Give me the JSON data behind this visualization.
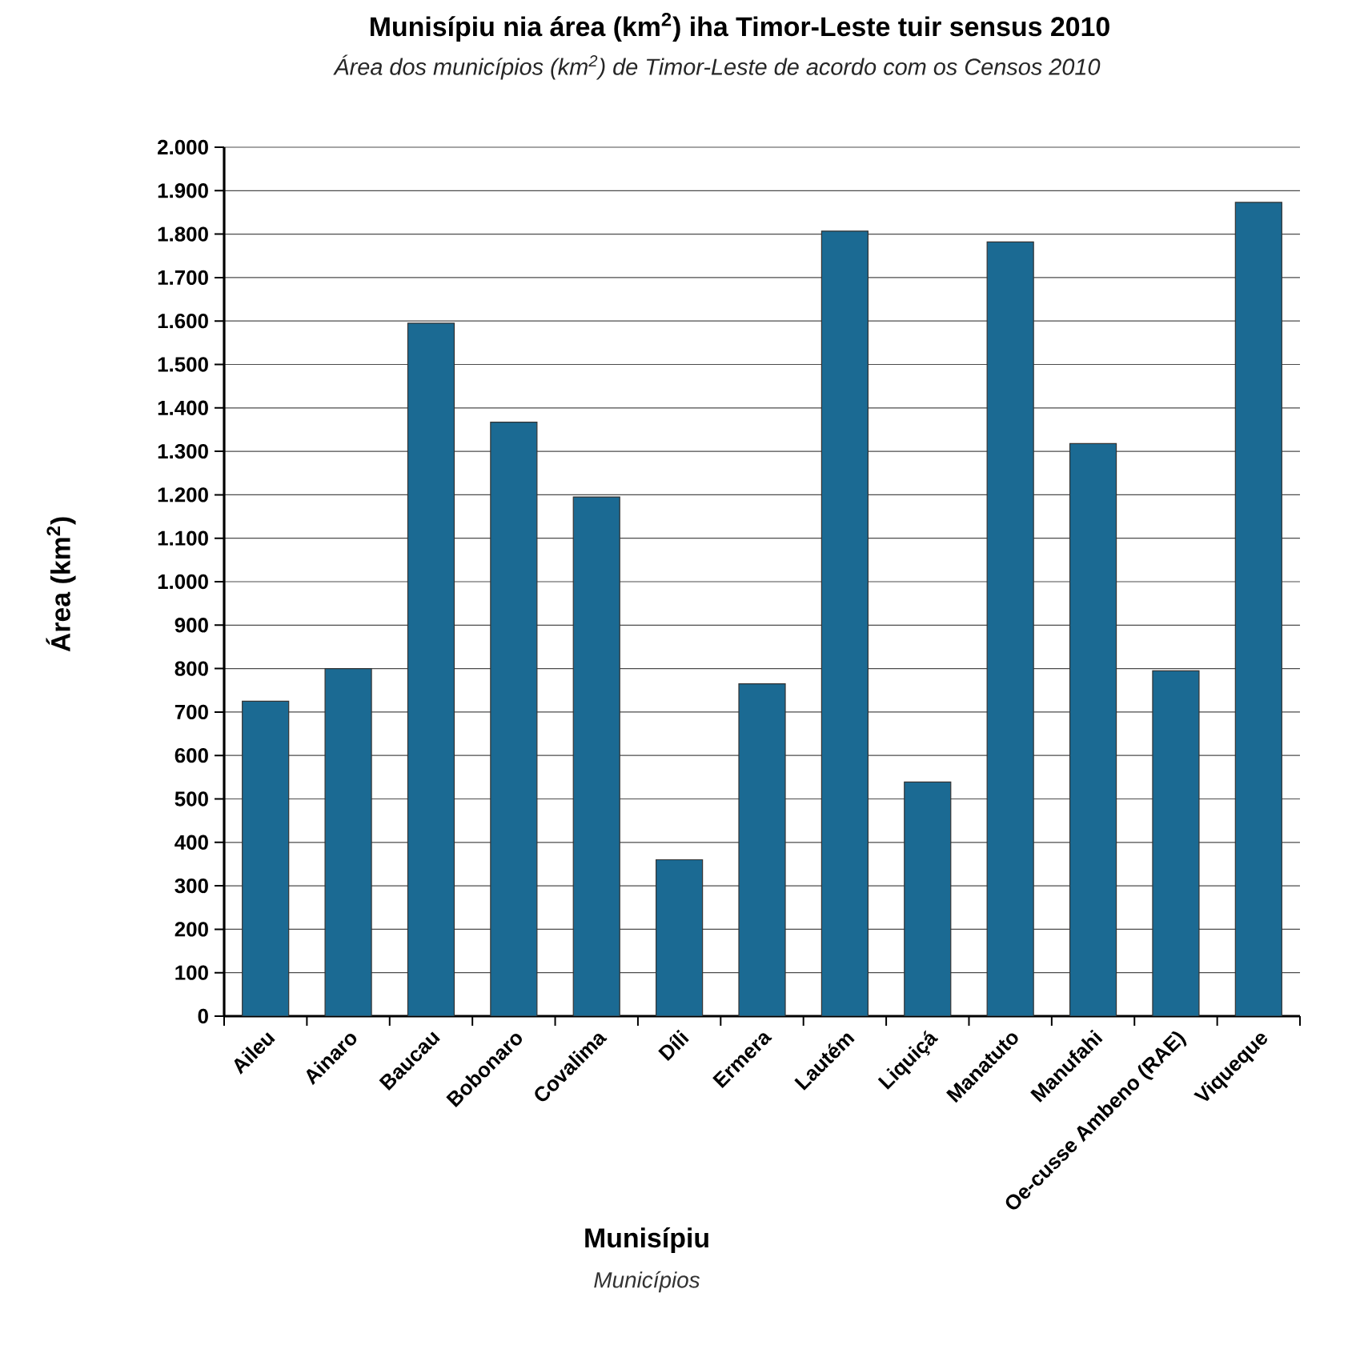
{
  "chart_data": {
    "type": "bar",
    "title": "Munisípiu nia área (km$^{2}$) iha Timor-Leste tuir sensus 2010",
    "subtitle": "Área dos municípios (km$^{2}$) de Timor-Leste de acordo com os Censos 2010",
    "xlabel": "Munisípiu",
    "ylabel": "Área (km$^{2}$)",
    "annotations": [
      "Municípios"
    ],
    "categories": [
      "Aileu",
      "Ainaro",
      "Baucau",
      "Bobonaro",
      "Covalima",
      "Díli",
      "Ermera",
      "Lautém",
      "Liquiçá",
      "Manatuto",
      "Manufahi",
      "Oe-cusse Ambeno (RAE)",
      "Viqueque"
    ],
    "values": [
      725,
      800,
      1595,
      1367,
      1195,
      360,
      765,
      1807,
      539,
      1782,
      1318,
      795,
      1873
    ],
    "color": "#1b6a93",
    "ylim": [
      0,
      2000
    ],
    "yticks": [
      0,
      {
        "value": 100,
        "label": "100"
      },
      {
        "value": 200,
        "label": "200"
      },
      {
        "value": 300,
        "label": "300"
      },
      {
        "value": 400,
        "label": "400"
      },
      {
        "value": 500,
        "label": "500"
      },
      {
        "value": 600,
        "label": "600"
      },
      {
        "value": 700,
        "label": "700"
      },
      {
        "value": 800,
        "label": "800"
      },
      {
        "value": 900,
        "label": "900"
      },
      {
        "value": 1000,
        "label": "1.000"
      },
      {
        "value": 1100,
        "label": "1.100"
      },
      {
        "value": 1200,
        "label": "1.200"
      },
      {
        "value": 1300,
        "label": "1.300"
      },
      {
        "value": 1400,
        "label": "1.400"
      },
      {
        "value": 1500,
        "label": "1.500"
      },
      {
        "value": 1600,
        "label": "1.600"
      },
      {
        "value": 1700,
        "label": "1.700"
      },
      {
        "value": 1800,
        "label": "1.800"
      },
      {
        "value": 1900,
        "label": "1.900"
      },
      {
        "value": 2000,
        "label": "2.000"
      }
    ],
    "grid": "y"
  }
}
